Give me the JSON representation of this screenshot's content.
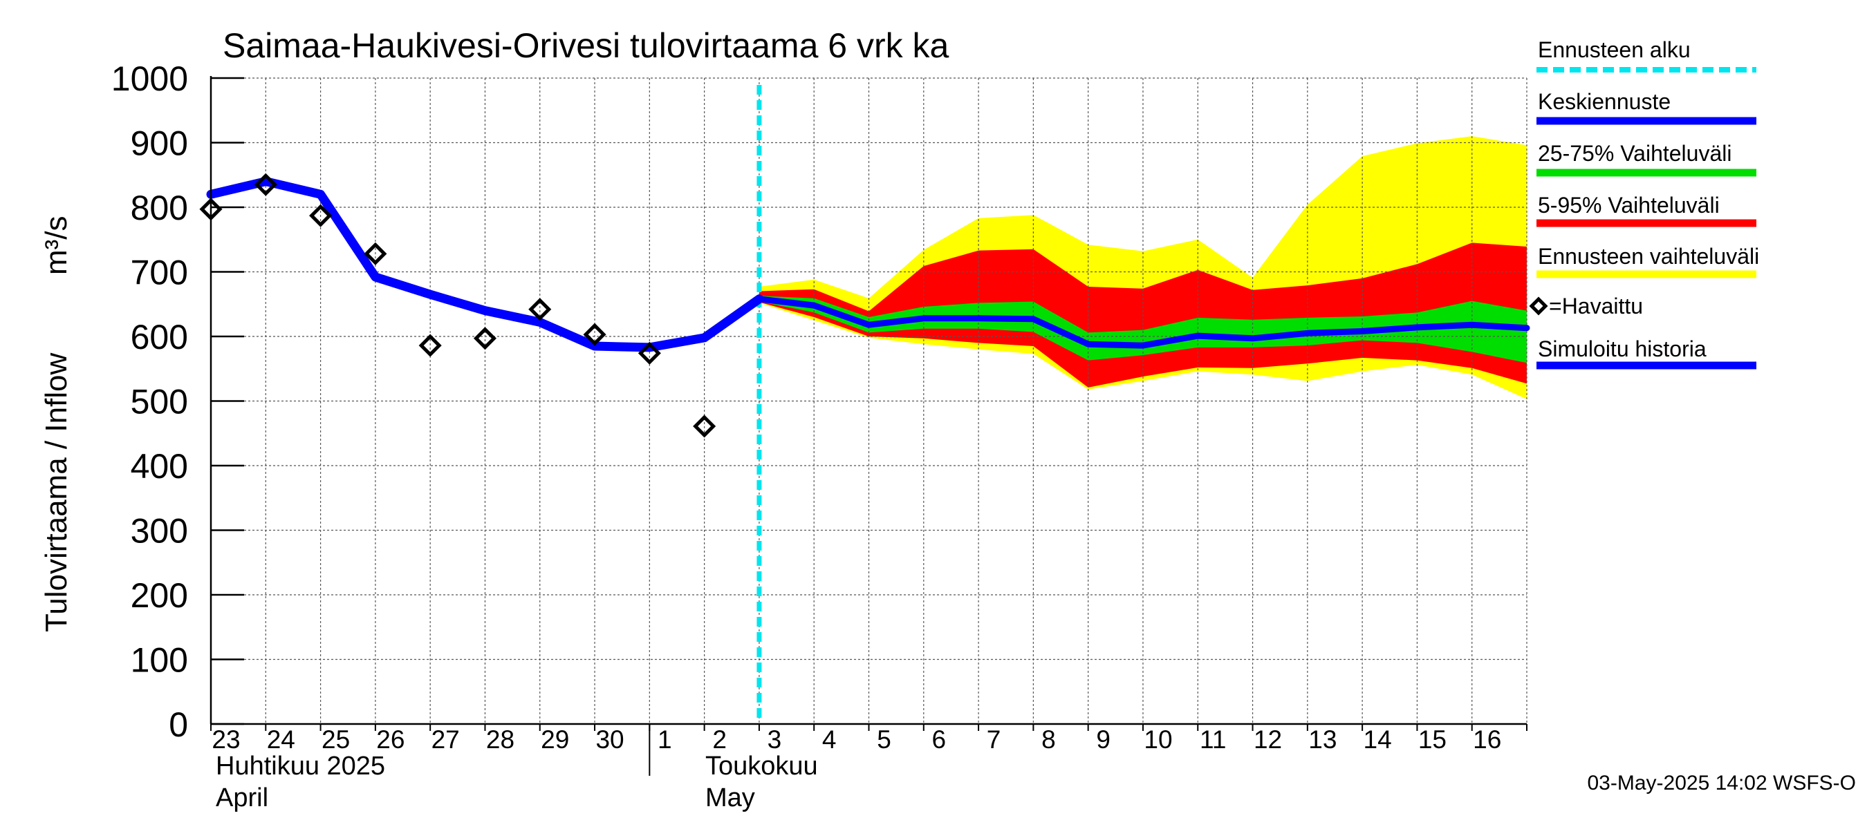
{
  "chart_data": {
    "type": "area",
    "title": "Saimaa-Haukivesi-Orivesi tulovirtaama  6 vrk ka",
    "ylabel": "Tulovirtaama / Inflow   m³/s",
    "ylabel_main": "Tulovirtaama / Inflow",
    "ylabel_unit": "m³/s",
    "ylim": [
      0,
      1000
    ],
    "yticks": [
      0,
      100,
      200,
      300,
      400,
      500,
      600,
      700,
      800,
      900,
      1000
    ],
    "ytick_labels": [
      "0",
      "100",
      "200",
      "300",
      "400",
      "500",
      "600",
      "700",
      "800",
      "900",
      "1000"
    ],
    "x_dates": [
      "2025-04-23",
      "2025-04-24",
      "2025-04-25",
      "2025-04-26",
      "2025-04-27",
      "2025-04-28",
      "2025-04-29",
      "2025-04-30",
      "2025-05-01",
      "2025-05-02",
      "2025-05-03",
      "2025-05-04",
      "2025-05-05",
      "2025-05-06",
      "2025-05-07",
      "2025-05-08",
      "2025-05-09",
      "2025-05-10",
      "2025-05-11",
      "2025-05-12",
      "2025-05-13",
      "2025-05-14",
      "2025-05-15",
      "2025-05-16",
      "2025-05-17"
    ],
    "xtick_labels": [
      "23",
      "24",
      "25",
      "26",
      "27",
      "28",
      "29",
      "30",
      "1",
      "2",
      "3",
      "4",
      "5",
      "6",
      "7",
      "8",
      "9",
      "10",
      "11",
      "12",
      "13",
      "14",
      "15",
      "16"
    ],
    "month_labels": {
      "april_fi": "Huhtikuu  2025",
      "april_en": "April",
      "may_fi": "Toukokuu",
      "may_en": "May"
    },
    "forecast_start": "2025-05-03",
    "grid": true,
    "legend_position": "right",
    "timestamp": "03-May-2025 14:02 WSFS-O",
    "colors": {
      "forecast_start": "#00e5ee",
      "median": "#0000ff",
      "band_25_75": "#00dd00",
      "band_5_95": "#ff0000",
      "band_full": "#ffff00",
      "observed": "#000000",
      "simulated": "#0000ff"
    },
    "series": [
      {
        "name": "Simuloitu historia",
        "x": [
          "2025-04-23",
          "2025-04-24",
          "2025-04-25",
          "2025-04-26",
          "2025-04-27",
          "2025-04-28",
          "2025-04-29",
          "2025-04-30",
          "2025-05-01",
          "2025-05-02",
          "2025-05-03"
        ],
        "values": [
          820,
          840,
          820,
          692,
          665,
          640,
          622,
          585,
          583,
          598,
          658
        ]
      },
      {
        "name": "=Havaittu",
        "x": [
          "2025-04-23",
          "2025-04-24",
          "2025-04-25",
          "2025-04-26",
          "2025-04-27",
          "2025-04-28",
          "2025-04-29",
          "2025-04-30",
          "2025-05-01",
          "2025-05-02"
        ],
        "values": [
          797,
          835,
          787,
          728,
          586,
          597,
          642,
          603,
          574,
          461
        ]
      },
      {
        "name": "Keskiennuste",
        "x": [
          "2025-05-03",
          "2025-05-04",
          "2025-05-05",
          "2025-05-06",
          "2025-05-07",
          "2025-05-08",
          "2025-05-09",
          "2025-05-10",
          "2025-05-11",
          "2025-05-12",
          "2025-05-13",
          "2025-05-14",
          "2025-05-15",
          "2025-05-16",
          "2025-05-17"
        ],
        "values": [
          658,
          648,
          618,
          628,
          628,
          627,
          588,
          586,
          601,
          597,
          605,
          608,
          614,
          618,
          613
        ]
      }
    ],
    "bands": [
      {
        "name": "Ennusteen vaihteluväli",
        "x": [
          "2025-05-03",
          "2025-05-04",
          "2025-05-05",
          "2025-05-06",
          "2025-05-07",
          "2025-05-08",
          "2025-05-09",
          "2025-05-10",
          "2025-05-11",
          "2025-05-12",
          "2025-05-13",
          "2025-05-14",
          "2025-05-15",
          "2025-05-16",
          "2025-05-17"
        ],
        "lower": [
          652,
          625,
          598,
          588,
          580,
          573,
          518,
          531,
          546,
          541,
          531,
          546,
          556,
          541,
          503
        ],
        "upper": [
          677,
          688,
          659,
          734,
          783,
          788,
          742,
          732,
          750,
          691,
          804,
          879,
          899,
          910,
          896
        ]
      },
      {
        "name": "5-95% Vaihteluväli",
        "x": [
          "2025-05-03",
          "2025-05-04",
          "2025-05-05",
          "2025-05-06",
          "2025-05-07",
          "2025-05-08",
          "2025-05-09",
          "2025-05-10",
          "2025-05-11",
          "2025-05-12",
          "2025-05-13",
          "2025-05-14",
          "2025-05-15",
          "2025-05-16",
          "2025-05-17"
        ],
        "lower": [
          653,
          630,
          600,
          597,
          590,
          585,
          521,
          538,
          552,
          551,
          558,
          567,
          563,
          551,
          527
        ],
        "upper": [
          670,
          673,
          639,
          709,
          733,
          735,
          677,
          674,
          703,
          672,
          679,
          690,
          712,
          745,
          739
        ]
      },
      {
        "name": "25-75% Vaihteluväli",
        "x": [
          "2025-05-03",
          "2025-05-04",
          "2025-05-05",
          "2025-05-06",
          "2025-05-07",
          "2025-05-08",
          "2025-05-09",
          "2025-05-10",
          "2025-05-11",
          "2025-05-12",
          "2025-05-13",
          "2025-05-14",
          "2025-05-15",
          "2025-05-16",
          "2025-05-17"
        ],
        "lower": [
          654,
          637,
          606,
          612,
          612,
          607,
          563,
          571,
          583,
          583,
          586,
          594,
          590,
          576,
          559
        ],
        "upper": [
          663,
          659,
          630,
          646,
          652,
          654,
          606,
          610,
          629,
          626,
          629,
          631,
          637,
          655,
          640
        ]
      }
    ],
    "legend": [
      {
        "label": "Ennusteen alku",
        "kind": "dashed",
        "color": "#00e5ee"
      },
      {
        "label": "Keskiennuste",
        "kind": "line",
        "color": "#0000ff"
      },
      {
        "label": "25-75% Vaihteluväli",
        "kind": "line",
        "color": "#00dd00"
      },
      {
        "label": "5-95% Vaihteluväli",
        "kind": "line",
        "color": "#ff0000"
      },
      {
        "label": "Ennusteen vaihteluväli",
        "kind": "line",
        "color": "#ffff00"
      },
      {
        "label": "=Havaittu",
        "kind": "marker",
        "color": "#000000"
      },
      {
        "label": "Simuloitu historia",
        "kind": "line",
        "color": "#0000ff"
      }
    ]
  }
}
